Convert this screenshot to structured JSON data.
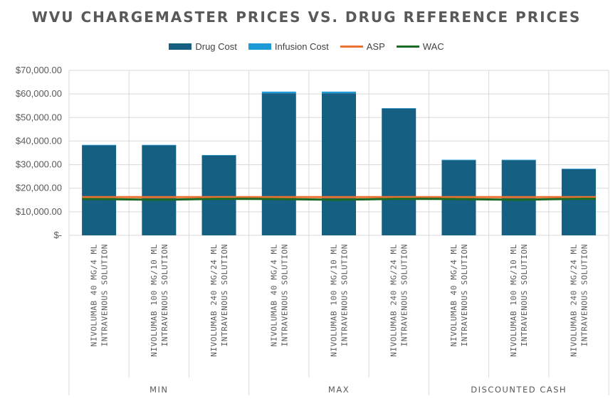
{
  "chart_data": {
    "type": "bar",
    "title": "WVU CHARGEMASTER PRICES VS. DRUG REFERENCE PRICES",
    "xlabel": "",
    "ylabel": "",
    "ylim": [
      0,
      70000
    ],
    "y_ticks": [
      0,
      10000,
      20000,
      30000,
      40000,
      50000,
      60000,
      70000
    ],
    "y_tick_labels": [
      "$-",
      "$10,000.00",
      "$20,000.00",
      "$30,000.00",
      "$40,000.00",
      "$50,000.00",
      "$60,000.00",
      "$70,000.00"
    ],
    "grid": true,
    "legend_position": "top-center",
    "categories": [
      [
        "NIVOLUMAB 40 MG/4 ML",
        "INTRAVENOUS SOLUTION"
      ],
      [
        "NIVOLUMAB 100 MG/10 ML",
        "INTRAVENOUS SOLUTION"
      ],
      [
        "NIVOLUMAB 240 MG/24 ML",
        "INTRAVENOUS SOLUTION"
      ],
      [
        "NIVOLUMAB 40 MG/4 ML",
        "INTRAVENOUS SOLUTION"
      ],
      [
        "NIVOLUMAB 100 MG/10 ML",
        "INTRAVENOUS SOLUTION"
      ],
      [
        "NIVOLUMAB 240 MG/24 ML",
        "INTRAVENOUS SOLUTION"
      ],
      [
        "NIVOLUMAB 40 MG/4 ML",
        "INTRAVENOUS SOLUTION"
      ],
      [
        "NIVOLUMAB 100 MG/10 ML",
        "INTRAVENOUS SOLUTION"
      ],
      [
        "NIVOLUMAB 240 MG/24 ML",
        "INTRAVENOUS SOLUTION"
      ]
    ],
    "groups": [
      {
        "name": "MIN",
        "count": 3
      },
      {
        "name": "MAX",
        "count": 3
      },
      {
        "name": "DISCOUNTED CASH",
        "count": 3
      }
    ],
    "series": [
      {
        "name": "Drug Cost",
        "kind": "stacked-bar",
        "color": "#156082",
        "values": [
          38200,
          38200,
          33900,
          60300,
          60300,
          53800,
          31900,
          31900,
          28100
        ]
      },
      {
        "name": "Infusion Cost",
        "kind": "stacked-bar",
        "color": "#1e9ad6",
        "values": [
          200,
          200,
          200,
          700,
          700,
          200,
          200,
          200,
          200
        ]
      },
      {
        "name": "ASP",
        "kind": "line",
        "color": "#e97132",
        "values": [
          16200,
          16200,
          16200,
          16200,
          16200,
          16200,
          16200,
          16200,
          16200
        ]
      },
      {
        "name": "WAC",
        "kind": "line",
        "color": "#196b24",
        "values": [
          15400,
          15100,
          15500,
          15400,
          15100,
          15500,
          15400,
          15100,
          15500
        ]
      }
    ]
  }
}
